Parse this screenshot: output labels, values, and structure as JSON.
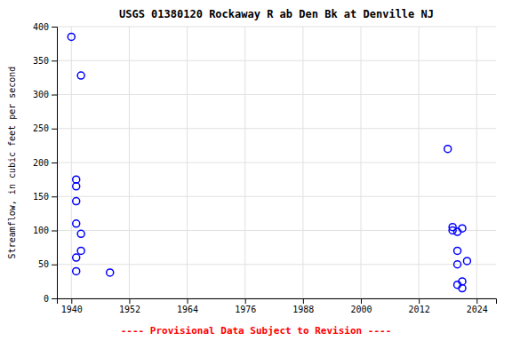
{
  "chart_data": {
    "type": "scatter",
    "title": "USGS 01380120 Rockaway R ab Den Bk at Denville NJ",
    "ylabel": "Streamflow, in cubic feet per second",
    "annotations": [
      {
        "text": "---- Provisional Data Subject to Revision ----",
        "color": "red"
      }
    ],
    "color": "blue",
    "marker": "circle",
    "grid": true,
    "xlim": [
      1937,
      2028
    ],
    "ylim": [
      0,
      400
    ],
    "xticks": [
      1940,
      1952,
      1964,
      1976,
      1988,
      2000,
      2012,
      2024
    ],
    "yticks": [
      0,
      50,
      100,
      150,
      200,
      250,
      300,
      350,
      400
    ],
    "x": [
      1940,
      1941,
      1941,
      1941,
      1941,
      1941,
      1941,
      1942,
      1942,
      1942,
      1948,
      2018,
      2019,
      2019,
      2020,
      2020,
      2020,
      2020,
      2021,
      2021,
      2021,
      2022
    ],
    "values": [
      385,
      165,
      175,
      143,
      110,
      60,
      40,
      328,
      95,
      70,
      38,
      220,
      100,
      105,
      98,
      50,
      70,
      20,
      15,
      25,
      103,
      55
    ]
  }
}
